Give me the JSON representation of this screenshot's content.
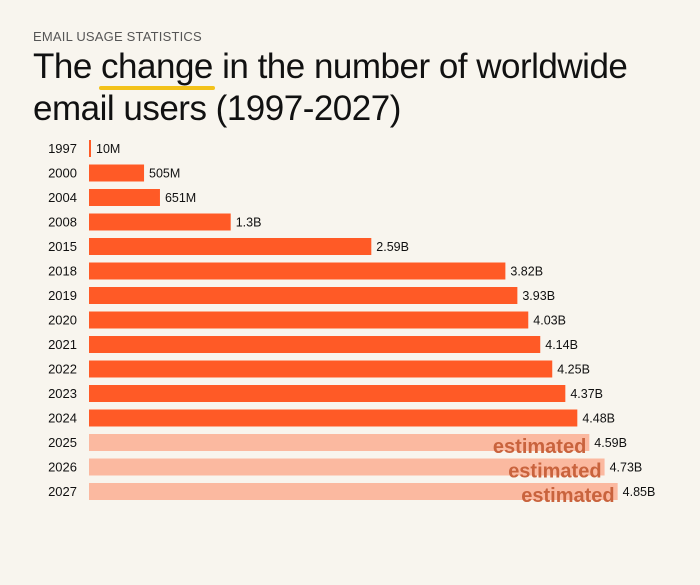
{
  "header": {
    "eyebrow": "EMAIL USAGE STATISTICS",
    "title_pre": "The ",
    "title_highlight": "change",
    "title_post": " in the number of worldwide",
    "title_line2": "email users (1997-2027)"
  },
  "colors": {
    "actual": "#ff5a26",
    "estimated": "#fbb9a0",
    "estimated_label": "#c9633d",
    "highlight_underline": "#f3c21a"
  },
  "chart_data": {
    "type": "bar",
    "orientation": "horizontal",
    "categories": [
      "1997",
      "2000",
      "2004",
      "2008",
      "2015",
      "2018",
      "2019",
      "2020",
      "2021",
      "2022",
      "2023",
      "2024",
      "2025",
      "2026",
      "2027"
    ],
    "values": [
      0.01,
      0.505,
      0.651,
      1.3,
      2.59,
      3.82,
      3.93,
      4.03,
      4.14,
      4.25,
      4.37,
      4.48,
      4.59,
      4.73,
      4.85
    ],
    "value_labels": [
      "10M",
      "505M",
      "651M",
      "1.3B",
      "2.59B",
      "3.82B",
      "3.93B",
      "4.03B",
      "4.14B",
      "4.25B",
      "4.37B",
      "4.48B",
      "4.59B",
      "4.73B",
      "4.85B"
    ],
    "estimated": [
      false,
      false,
      false,
      false,
      false,
      false,
      false,
      false,
      false,
      false,
      false,
      false,
      true,
      true,
      true
    ],
    "estimated_label": "estimated",
    "unit": "billions of users",
    "xlim": [
      0,
      5
    ]
  }
}
